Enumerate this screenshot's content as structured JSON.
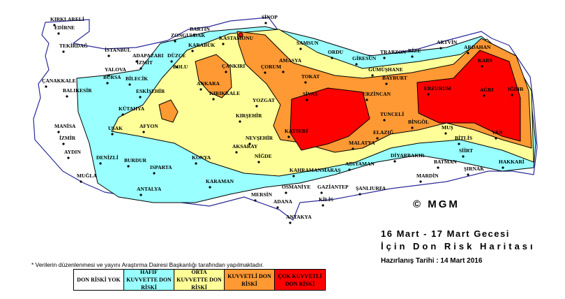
{
  "title": {
    "line1": "16 Mart - 17 Mart  Gecesi",
    "line2": "İçin Don Risk Haritası",
    "prepared": "Hazırlanış Tarihi : 14 Mart 2016"
  },
  "note": "* Verilerin düzenlenmesi ve yayını Araştırma Dairesi Başkanlığı tarafından yapılmaktadır.",
  "copyright": "© MGM",
  "legend": [
    {
      "label": "DON RİSKİ YOK",
      "color": "#ffffff"
    },
    {
      "label": "HAFİF KUVVETTE DON RİSKİ",
      "color": "#99ffff"
    },
    {
      "label": "ORTA KUVVETTE DON RİSKİ",
      "color": "#ffff99"
    },
    {
      "label": "KUVVETLİ DON RİSKİ",
      "color": "#ff9933"
    },
    {
      "label": "ÇOK KUVVETLİ DON RİSKİ",
      "color": "#ff0000"
    }
  ],
  "colors": {
    "border": "#2b2b99",
    "province": "#8a8a8a",
    "contour": "#000000"
  },
  "cities": [
    "KIRKLARELİ",
    "EDİRNE",
    "TEKİRDAĞ",
    "İSTANBUL",
    "ADAPAZARI",
    "DÜZCE",
    "İZMİT",
    "YALOVA",
    "BURSA",
    "BİLECİK",
    "ÇANAKKALE",
    "BALIKESİR",
    "ESKİŞEHİR",
    "KÜTAHYA",
    "BARTIN",
    "ZONGULDAK",
    "KARABÜK",
    "BOLU",
    "KASTAMONU",
    "SİNOP",
    "ÇANKIRI",
    "ÇORUM",
    "ANKARA",
    "KIRIKKALE",
    "YOZGAT",
    "SAMSUN",
    "AMASYA",
    "TOKAT",
    "ORDU",
    "GİRESUN",
    "TRABZON",
    "RİZE",
    "ARTVİN",
    "ARDAHAN",
    "GÜMÜŞHANE",
    "BAYBURT",
    "KARS",
    "ERZURUM",
    "AĞRI",
    "IĞDIR",
    "SİVAS",
    "ERZİNCAN",
    "TUNCELİ",
    "BİNGÖL",
    "MUŞ",
    "VAN",
    "BİTLİS",
    "ELAZIĞ",
    "MALATYA",
    "KAYSERİ",
    "NEVŞEHİR",
    "KIRŞEHİR",
    "AKSARAY",
    "NİĞDE",
    "MANİSA",
    "İZMİR",
    "AYDIN",
    "UŞAK",
    "AFYON",
    "DENİZLİ",
    "BURDUR",
    "ISPARTA",
    "KONYA",
    "MUĞLA",
    "ANTALYA",
    "KARAMAN",
    "MERSİN",
    "ADANA",
    "OSMANİYE",
    "GAZİANTEP",
    "KİLİS",
    "ANTAKYA",
    "KAHRAMANMARAŞ",
    "ADIYAMAN",
    "ŞANLIURFA",
    "DİYARBAKIR",
    "BATMAN",
    "SİİRT",
    "ŞIRNAK",
    "HAKKARİ",
    "MARDİN"
  ]
}
